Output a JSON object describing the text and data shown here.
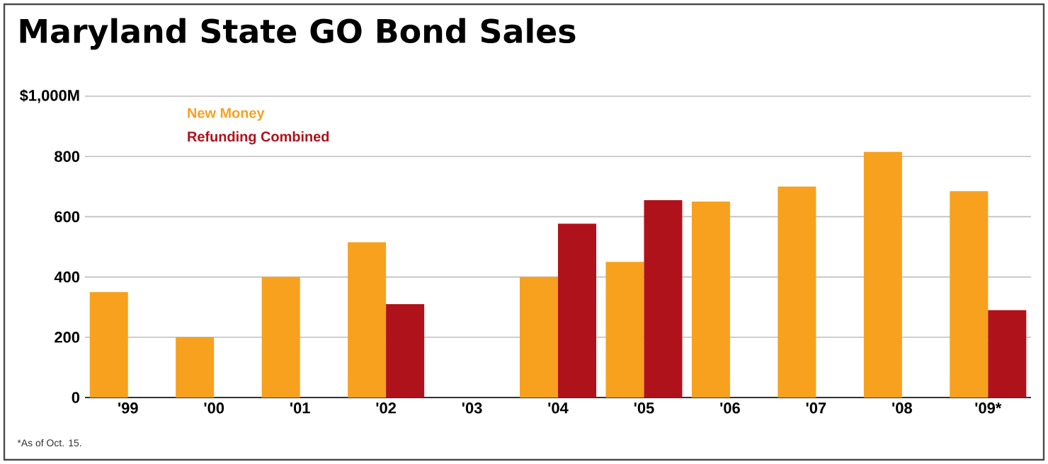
{
  "chart_data": {
    "type": "bar",
    "title": "Maryland State GO Bond Sales",
    "categories": [
      "'99",
      "'00",
      "'01",
      "'02",
      "'03",
      "'04",
      "'05",
      "'06",
      "'07",
      "'08",
      "'09*"
    ],
    "series": [
      {
        "name": "New Money",
        "color": "#f7a11f",
        "values": [
          350,
          200,
          400,
          515,
          null,
          400,
          450,
          650,
          700,
          815,
          685
        ]
      },
      {
        "name": "Refunding Combined",
        "color": "#b0121b",
        "values": [
          null,
          null,
          null,
          310,
          null,
          577,
          655,
          null,
          null,
          null,
          290
        ]
      }
    ],
    "ylim": [
      0,
      1000
    ],
    "yticks": [
      0,
      200,
      400,
      600,
      800,
      {
        "value": 1000,
        "label": "$1,000M"
      }
    ],
    "grid": "y",
    "legend": "top left",
    "annotations": [
      "*As of Oct. 15."
    ]
  }
}
